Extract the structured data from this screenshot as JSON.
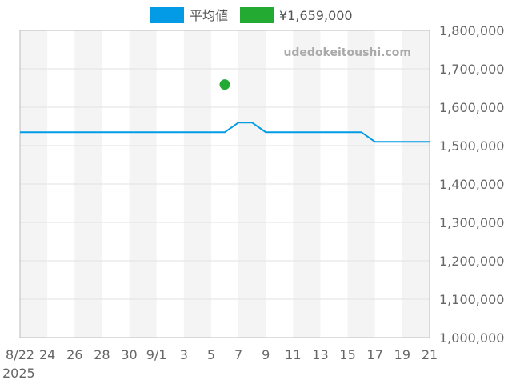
{
  "chart_data": {
    "type": "line",
    "watermark": "udedokeitoushi.com",
    "x_tick_labels": [
      "8/22",
      "24",
      "26",
      "28",
      "30",
      "9/1",
      "3",
      "5",
      "7",
      "9",
      "11",
      "13",
      "15",
      "17",
      "19",
      "21"
    ],
    "x_year_label": "2025",
    "ylim": [
      1000000,
      1800000
    ],
    "y_tick_values": [
      1000000,
      1100000,
      1200000,
      1300000,
      1400000,
      1500000,
      1600000,
      1700000,
      1800000
    ],
    "y_tick_labels": [
      "1,000,000",
      "1,100,000",
      "1,200,000",
      "1,300,000",
      "1,400,000",
      "1,500,000",
      "1,600,000",
      "1,700,000",
      "1,800,000"
    ],
    "legend": [
      {
        "name": "平均値",
        "color": "#039be5",
        "type": "line"
      },
      {
        "name": "¥1,659,000",
        "color": "#22aa33",
        "type": "point"
      }
    ],
    "series": [
      {
        "name": "平均値",
        "color": "#039be5",
        "points": [
          {
            "x": "2025-08-22",
            "y": 1535000
          },
          {
            "x": "2025-09-06",
            "y": 1535000
          },
          {
            "x": "2025-09-07",
            "y": 1560000
          },
          {
            "x": "2025-09-08",
            "y": 1560000
          },
          {
            "x": "2025-09-09",
            "y": 1535000
          },
          {
            "x": "2025-09-16",
            "y": 1535000
          },
          {
            "x": "2025-09-17",
            "y": 1510000
          },
          {
            "x": "2025-09-21",
            "y": 1510000
          }
        ]
      },
      {
        "name": "¥1,659,000",
        "color": "#22aa33",
        "points": [
          {
            "x": "2025-09-06",
            "y": 1659000
          }
        ]
      }
    ],
    "grid": true,
    "legend_position": "top-center"
  }
}
